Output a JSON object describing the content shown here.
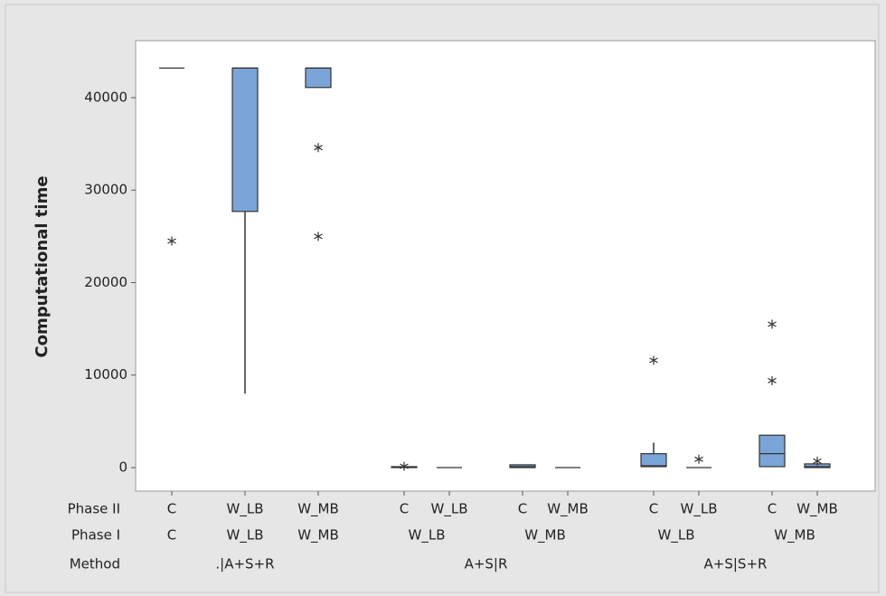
{
  "chart_data": {
    "type": "box",
    "y_label": "Computational time",
    "ylim": [
      -2543,
      46161
    ],
    "yticks": [
      0,
      10000,
      20000,
      30000,
      40000
    ],
    "color": "#7ba5d8",
    "row_titles": {
      "phase_ii": "Phase II",
      "phase_i": "Phase I",
      "method": "Method"
    },
    "categories": [
      "C",
      "W_LB",
      "W_MB",
      "C",
      "W_LB",
      "C",
      "W_MB",
      "C",
      "W_LB",
      "C",
      "W_MB"
    ],
    "phase_i": [
      {
        "label": "C",
        "span": 1
      },
      {
        "label": "W_LB",
        "span": 1
      },
      {
        "label": "W_MB",
        "span": 1
      },
      {
        "label": "W_LB",
        "span": 2
      },
      {
        "label": "W_MB",
        "span": 2
      },
      {
        "label": "W_LB",
        "span": 2
      },
      {
        "label": "W_MB",
        "span": 2
      }
    ],
    "method": [
      {
        "label": ".|A+S+R",
        "span": 3
      },
      {
        "label": "A+S|R",
        "span": 4
      },
      {
        "label": "A+S|S+R",
        "span": 4
      }
    ],
    "boxes": [
      {
        "min": 43200,
        "q1": 43200,
        "median": 43200,
        "q3": 43200,
        "max": 43200,
        "outliers": [
          24500
        ]
      },
      {
        "min": 8000,
        "q1": 27700,
        "median": 43200,
        "q3": 43200,
        "max": 43200,
        "outliers": []
      },
      {
        "min": 41100,
        "q1": 41100,
        "median": 43200,
        "q3": 43200,
        "max": 43200,
        "outliers": [
          34600,
          25000
        ]
      },
      {
        "min": 0,
        "q1": 0,
        "median": 50,
        "q3": 100,
        "max": 100,
        "outliers": [
          150
        ]
      },
      {
        "min": 0,
        "q1": 0,
        "median": 0,
        "q3": 0,
        "max": 0,
        "outliers": []
      },
      {
        "min": 0,
        "q1": 0,
        "median": 100,
        "q3": 300,
        "max": 300,
        "outliers": []
      },
      {
        "min": 0,
        "q1": 0,
        "median": 0,
        "q3": 0,
        "max": 0,
        "outliers": []
      },
      {
        "min": 100,
        "q1": 100,
        "median": 200,
        "q3": 1500,
        "max": 2700,
        "outliers": [
          11600
        ]
      },
      {
        "min": 0,
        "q1": 0,
        "median": 0,
        "q3": 0,
        "max": 0,
        "outliers": [
          900
        ]
      },
      {
        "min": 100,
        "q1": 100,
        "median": 1500,
        "q3": 3500,
        "max": 3500,
        "outliers": [
          15500,
          9400
        ]
      },
      {
        "min": 0,
        "q1": 0,
        "median": 100,
        "q3": 400,
        "max": 400,
        "outliers": [
          700
        ]
      }
    ]
  }
}
